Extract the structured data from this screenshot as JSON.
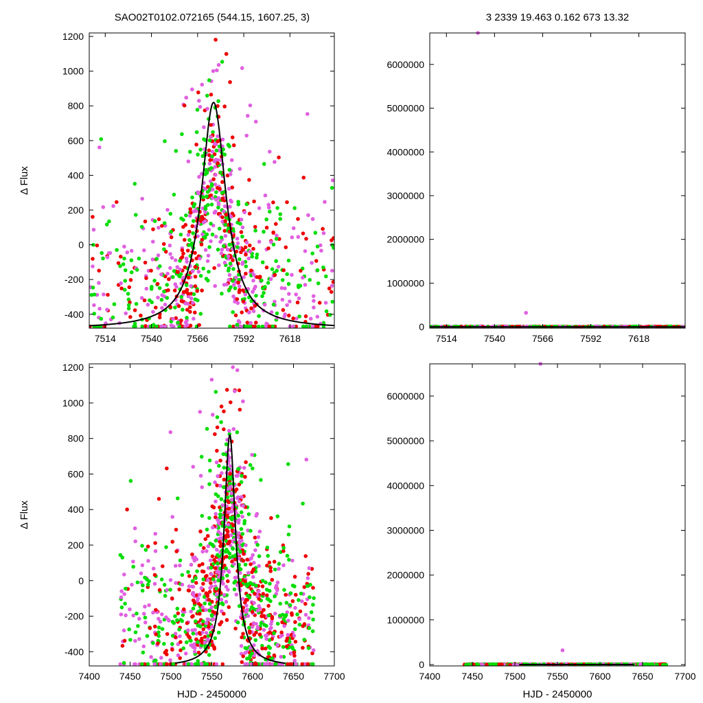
{
  "header": {
    "left_title": "SAO02T0102.072165 (544.15, 1607.25,    3)",
    "right_title": "3   2339   19.463   0.162   673   13.32"
  },
  "colors": {
    "series_red": "#ee0000",
    "series_green": "#00dd00",
    "series_magenta": "#e060e0",
    "model_curve": "#000000",
    "axis": "#000000"
  },
  "chart_data": [
    {
      "id": "top-left",
      "type": "scatter",
      "xlabel": "",
      "ylabel": "Δ Flux",
      "xlim": [
        7505,
        7643
      ],
      "ylim": [
        -480,
        1220
      ],
      "xticks": [
        7514,
        7540,
        7566,
        7592,
        7618
      ],
      "yticks": [
        -400,
        -200,
        0,
        200,
        400,
        600,
        800,
        1000,
        1200
      ],
      "series": [
        {
          "color": "red",
          "seed": 11,
          "n": 300,
          "xmin": 7505,
          "xmax": 7643,
          "xcenter": 7575,
          "xspread": 30
        },
        {
          "color": "magenta",
          "seed": 23,
          "n": 360,
          "xmin": 7505,
          "xmax": 7643,
          "xcenter": 7575,
          "xspread": 30
        },
        {
          "color": "green",
          "seed": 37,
          "n": 340,
          "xmin": 7505,
          "xmax": 7643,
          "xcenter": 7575,
          "xspread": 30
        }
      ],
      "model": {
        "type": "lorentzian",
        "peak_x": 7575,
        "peak_y": 820,
        "baseline": -485,
        "halfwidth": 8.5
      }
    },
    {
      "id": "top-right",
      "type": "scatter",
      "xlabel": "",
      "ylabel": "",
      "xlim": [
        7505,
        7643
      ],
      "ylim": [
        -30000,
        6720000
      ],
      "xticks": [
        7514,
        7540,
        7566,
        7592,
        7618
      ],
      "yticks": [
        0,
        1000000,
        2000000,
        3000000,
        4000000,
        5000000,
        6000000
      ],
      "baseline_points": {
        "xmin": 7505,
        "xmax": 7643,
        "y": 0,
        "n": 600
      },
      "outliers": [
        {
          "x": 7531,
          "y": 6720000,
          "color": "magenta"
        },
        {
          "x": 7557,
          "y": 320000,
          "color": "magenta"
        }
      ],
      "model": {
        "type": "flat",
        "y": 0,
        "xmin": 7505,
        "xmax": 7643
      }
    },
    {
      "id": "bottom-left",
      "type": "scatter",
      "xlabel": "HJD - 2450000",
      "ylabel": "Δ Flux",
      "xlim": [
        7400,
        7700
      ],
      "ylim": [
        -480,
        1220
      ],
      "xticks": [
        7400,
        7450,
        7500,
        7550,
        7600,
        7650,
        7700
      ],
      "yticks": [
        -400,
        -200,
        0,
        200,
        400,
        600,
        800,
        1000,
        1200
      ],
      "series": [
        {
          "color": "red",
          "seed": 51,
          "n": 420,
          "xmin": 7438,
          "xmax": 7675,
          "xcenter": 7572,
          "xspread": 55
        },
        {
          "color": "magenta",
          "seed": 63,
          "n": 460,
          "xmin": 7438,
          "xmax": 7675,
          "xcenter": 7572,
          "xspread": 55
        },
        {
          "color": "green",
          "seed": 77,
          "n": 440,
          "xmin": 7438,
          "xmax": 7675,
          "xcenter": 7572,
          "xspread": 55
        }
      ],
      "model": {
        "type": "lorentzian",
        "peak_x": 7572,
        "peak_y": 820,
        "baseline": -485,
        "halfwidth": 8.5,
        "xmin": 7505,
        "xmax": 7640
      }
    },
    {
      "id": "bottom-right",
      "type": "scatter",
      "xlabel": "HJD - 2450000",
      "ylabel": "",
      "xlim": [
        7400,
        7700
      ],
      "ylim": [
        -30000,
        6720000
      ],
      "xticks": [
        7400,
        7450,
        7500,
        7550,
        7600,
        7650,
        7700
      ],
      "yticks": [
        0,
        1000000,
        2000000,
        3000000,
        4000000,
        5000000,
        6000000
      ],
      "baseline_points": {
        "xmin": 7440,
        "xmax": 7678,
        "y": 0,
        "n": 700
      },
      "outliers": [
        {
          "x": 7530,
          "y": 6720000,
          "color": "magenta"
        },
        {
          "x": 7556,
          "y": 320000,
          "color": "magenta"
        }
      ],
      "model": {
        "type": "flat",
        "y": 0,
        "xmin": 7505,
        "xmax": 7640
      }
    }
  ]
}
